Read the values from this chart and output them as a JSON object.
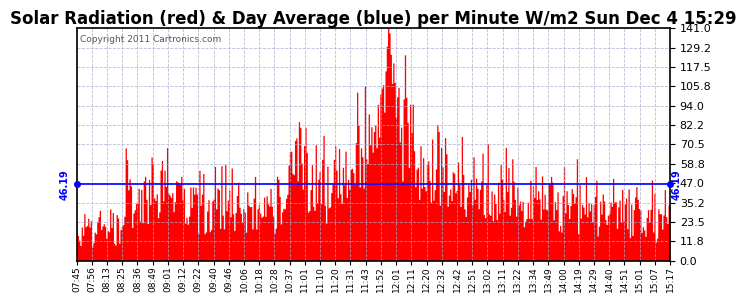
{
  "title": "Solar Radiation (red) & Day Average (blue) per Minute W/m2 Sun Dec 4 15:29",
  "copyright": "Copyright 2011 Cartronics.com",
  "avg_value": 46.19,
  "ymin": 0.0,
  "ymax": 141.0,
  "yticks": [
    0.0,
    11.8,
    23.5,
    35.2,
    47.0,
    58.8,
    70.5,
    82.2,
    94.0,
    105.8,
    117.5,
    129.2,
    141.0
  ],
  "xtick_labels": [
    "07:45",
    "07:56",
    "08:13",
    "08:25",
    "08:36",
    "08:49",
    "09:01",
    "09:12",
    "09:22",
    "09:40",
    "09:46",
    "10:06",
    "10:18",
    "10:28",
    "10:37",
    "11:01",
    "11:10",
    "11:20",
    "11:31",
    "11:43",
    "11:52",
    "12:01",
    "12:11",
    "12:20",
    "12:32",
    "12:42",
    "12:51",
    "13:02",
    "13:11",
    "13:22",
    "13:34",
    "13:49",
    "14:00",
    "14:19",
    "14:29",
    "14:40",
    "14:51",
    "15:01",
    "15:07",
    "15:17"
  ],
  "background_color": "#ffffff",
  "plot_bg_color": "#ffffff",
  "bar_color": "#ff0000",
  "line_color": "#0000ff",
  "grid_color": "#aaaacc",
  "title_fontsize": 12,
  "avg_label": "46.19",
  "solar_seed": 12345,
  "n_points": 460
}
